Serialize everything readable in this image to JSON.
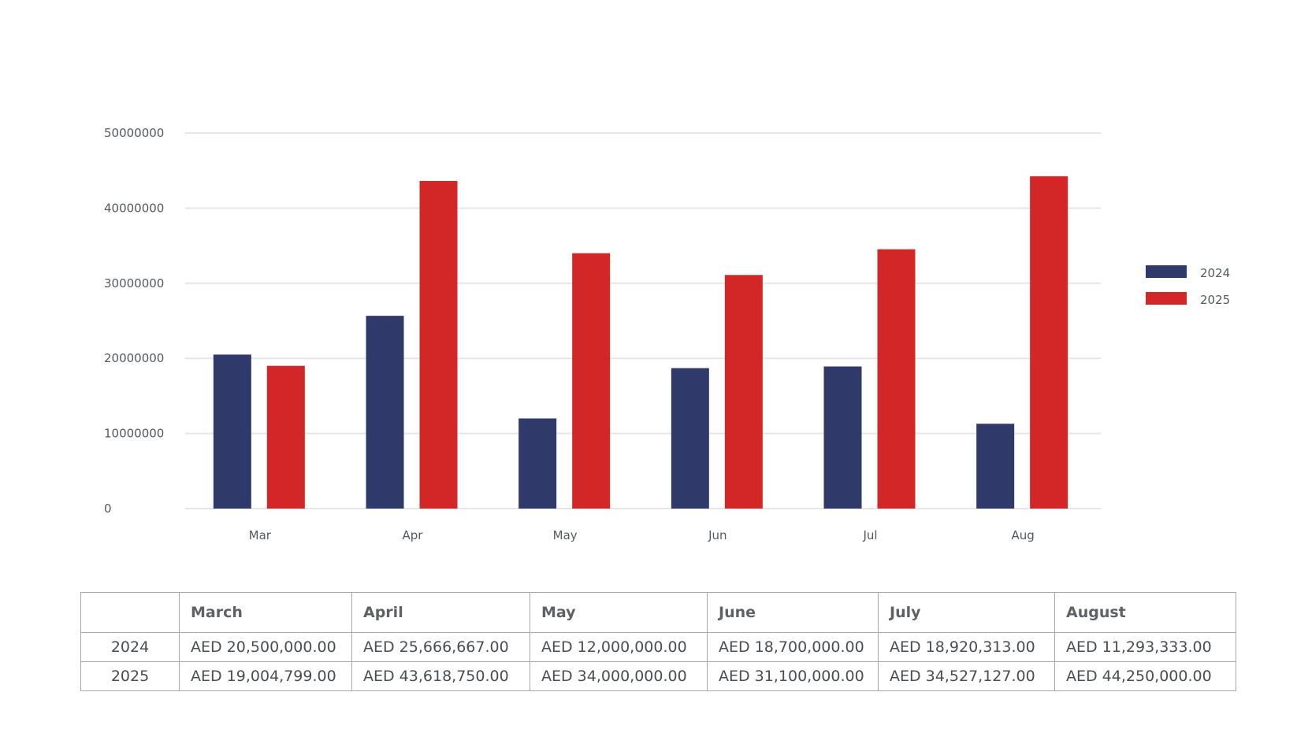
{
  "chart_data": {
    "type": "bar",
    "categories": [
      "Mar",
      "Apr",
      "May",
      "Jun",
      "Jul",
      "Aug"
    ],
    "series": [
      {
        "name": "2024",
        "color": "#2f3a6b",
        "values": [
          20500000,
          25666667,
          12000000,
          18700000,
          18920313,
          11293333
        ]
      },
      {
        "name": "2025",
        "color": "#d32626",
        "values": [
          19004799,
          43618750,
          34000000,
          31100000,
          34527127,
          44250000
        ]
      }
    ],
    "y_ticks": [
      "0",
      "10000000",
      "20000000",
      "30000000",
      "40000000",
      "50000000"
    ],
    "ylim": [
      0,
      50000000
    ],
    "grid": true,
    "legend_position": "right"
  },
  "table": {
    "corner": "",
    "headers": [
      "March",
      "April",
      "May",
      "June",
      "July",
      "August"
    ],
    "rows": [
      {
        "label": "2024",
        "cells": [
          "AED 20,500,000.00",
          "AED 25,666,667.00",
          "AED 12,000,000.00",
          "AED 18,700,000.00",
          "AED 18,920,313.00",
          "AED 11,293,333.00"
        ]
      },
      {
        "label": "2025",
        "cells": [
          "AED 19,004,799.00",
          "AED 43,618,750.00",
          "AED 34,000,000.00",
          "AED 31,100,000.00",
          "AED 34,527,127.00",
          "AED 44,250,000.00"
        ]
      }
    ]
  }
}
